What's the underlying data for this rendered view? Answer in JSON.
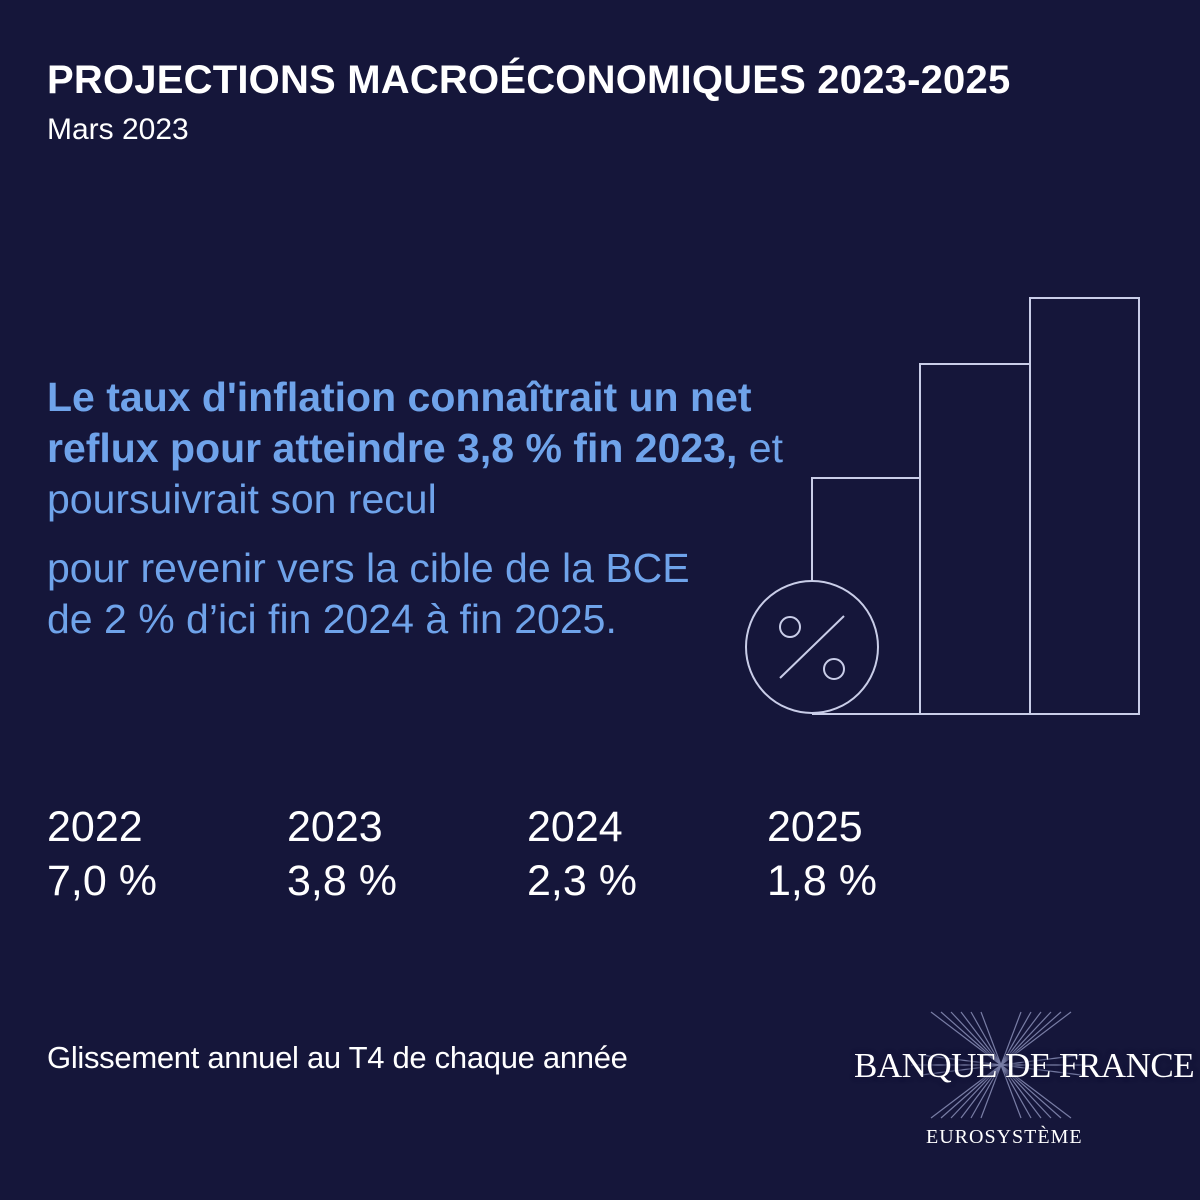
{
  "header": {
    "title": "PROJECTIONS MACROÉCONOMIQUES 2023-2025",
    "subtitle": "Mars 2023"
  },
  "headline": {
    "bold_part": "Le taux d'inflation connaîtrait un net reflux pour atteindre 3,8 % fin 2023,",
    "regular_part": " et poursuivrait son recul"
  },
  "body_text": "pour revenir vers la cible de la BCE de 2 % d’ici fin 2024 à fin 2025.",
  "illustration": {
    "icon": "percent-icon",
    "icon_glyph": "%",
    "chart_icon": "bar-chart-icon"
  },
  "years": [
    {
      "year": "2022",
      "value": "7,0 %"
    },
    {
      "year": "2023",
      "value": "3,8 %"
    },
    {
      "year": "2024",
      "value": "2,3 %"
    },
    {
      "year": "2025",
      "value": "1,8 %"
    }
  ],
  "footnote": "Glissement annuel au T4 de chaque année",
  "logo": {
    "name": "BANQUE DE FRANCE",
    "sub": "EUROSYSTÈME"
  },
  "colors": {
    "background": "#15163a",
    "accent": "#6fa3ea",
    "text": "#ffffff",
    "line": "#c9cde8"
  }
}
